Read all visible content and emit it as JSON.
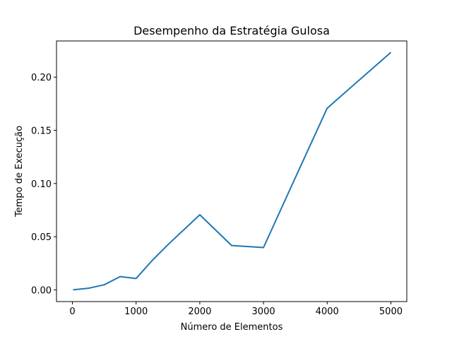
{
  "chart_data": {
    "type": "line",
    "title": "Desempenho da Estratégia Gulosa",
    "xlabel": "Número de Elementos",
    "ylabel": "Tempo de Execução",
    "xlim": [
      -250,
      5250
    ],
    "ylim": [
      -0.011,
      0.234
    ],
    "xticks": [
      0,
      1000,
      2000,
      3000,
      4000,
      5000
    ],
    "yticks": [
      "0.00",
      "0.05",
      "0.10",
      "0.15",
      "0.20"
    ],
    "grid": false,
    "series": [
      {
        "color": "#1f77b4",
        "x": [
          10,
          250,
          500,
          750,
          1000,
          1250,
          1500,
          2000,
          2500,
          3000,
          3500,
          4000,
          4500,
          5000
        ],
        "y": [
          0.0,
          0.0015,
          0.0048,
          0.0125,
          0.0107,
          0.0275,
          0.0425,
          0.0706,
          0.0417,
          0.0398,
          0.1055,
          0.1708,
          0.1971,
          0.2233
        ]
      }
    ]
  }
}
